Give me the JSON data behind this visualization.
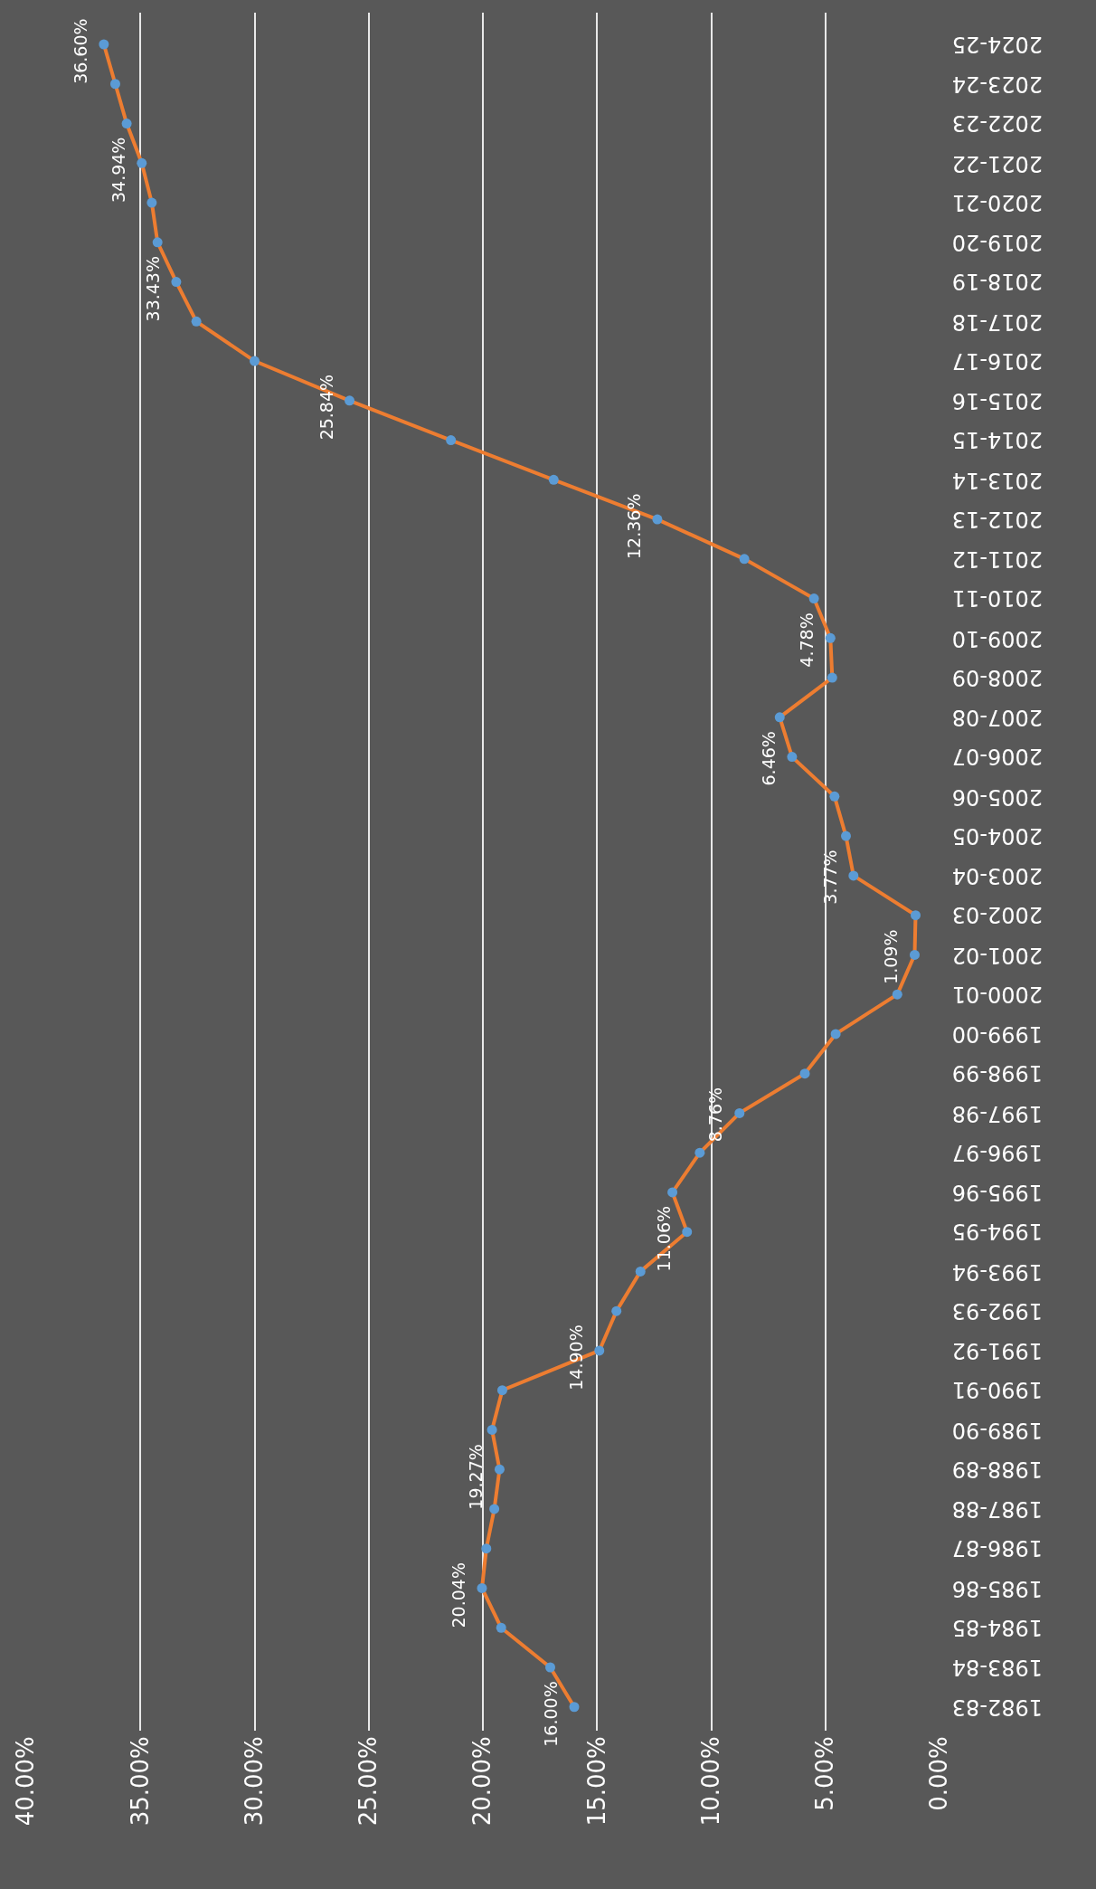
{
  "chart_data": {
    "type": "line",
    "orientation": "horizontal",
    "categories": [
      "2024-25",
      "2023-24",
      "2022-23",
      "2021-22",
      "2020-21",
      "2019-20",
      "2018-19",
      "2017-18",
      "2016-17",
      "2015-16",
      "2014-15",
      "2013-14",
      "2012-13",
      "2011-12",
      "2010-11",
      "2009-10",
      "2008-09",
      "2007-08",
      "2006-07",
      "2005-06",
      "2004-05",
      "2003-04",
      "2002-03",
      "2001-02",
      "2000-01",
      "1999-00",
      "1998-99",
      "1997-98",
      "1996-97",
      "1995-96",
      "1994-95",
      "1993-94",
      "1992-93",
      "1991-92",
      "1990-91",
      "1989-90",
      "1988-89",
      "1987-88",
      "1986-87",
      "1985-86",
      "1984-85",
      "1983-84",
      "1982-83"
    ],
    "series": [
      {
        "color": "#ed7d31",
        "colors": [
          "#5b9bd5",
          "#5b9bd5",
          "#5b9bd5",
          "#5b9bd5",
          "#5b9bd5",
          "#5b9bd5",
          "#5b9bd5",
          "#5b9bd5",
          "#5b9bd5",
          "#5b9bd5",
          "#5b9bd5",
          "#5b9bd5",
          "#5b9bd5",
          "#5b9bd5",
          "#5b9bd5",
          "#5b9bd5",
          "#5b9bd5",
          "#5b9bd5",
          "#5b9bd5",
          "#5b9bd5",
          "#5b9bd5",
          "#5b9bd5",
          "#5b9bd5",
          "#5b9bd5",
          "#5b9bd5",
          "#5b9bd5",
          "#5b9bd5",
          "#5b9bd5",
          "#5b9bd5",
          "#5b9bd5",
          "#5b9bd5",
          "#5b9bd5",
          "#5b9bd5",
          "#5b9bd5",
          "#5b9bd5",
          "#5b9bd5",
          "#5b9bd5",
          "#5b9bd5",
          "#5b9bd5",
          "#5b9bd5",
          "#5b9bd5",
          "#5b9bd5",
          "#5b9bd5"
        ],
        "values": [
          36.6,
          36.1,
          35.6,
          34.94,
          34.5,
          34.25,
          33.43,
          32.55,
          30.0,
          25.84,
          21.4,
          16.9,
          12.36,
          8.55,
          5.5,
          4.78,
          4.7,
          7.0,
          6.46,
          4.6,
          4.1,
          3.77,
          1.05,
          1.09,
          1.85,
          4.55,
          5.9,
          8.76,
          10.5,
          11.7,
          11.06,
          13.1,
          14.15,
          14.9,
          19.15,
          19.6,
          19.27,
          19.5,
          19.85,
          20.04,
          19.2,
          17.05,
          16.0
        ],
        "value_labels": [
          "36.60%",
          null,
          null,
          "34.94%",
          null,
          null,
          "33.43%",
          null,
          null,
          "25.84%",
          null,
          null,
          "12.36%",
          null,
          null,
          "4.78%",
          null,
          null,
          "6.46%",
          null,
          null,
          "3.77%",
          null,
          "1.09%",
          null,
          null,
          null,
          "8.76%",
          null,
          null,
          "11.06%",
          null,
          null,
          "14.90%",
          null,
          null,
          "19.27%",
          null,
          null,
          "20.04%",
          null,
          null,
          "16.00%"
        ]
      }
    ],
    "xlim": [
      40,
      0
    ],
    "xticks": [
      {
        "value": 40,
        "label": "40.00%"
      },
      {
        "value": 35,
        "label": "35.00%"
      },
      {
        "value": 30,
        "label": "30.00%"
      },
      {
        "value": 25,
        "label": "25.00%"
      },
      {
        "value": 20,
        "label": "20.00%"
      },
      {
        "value": 15,
        "label": "15.00%"
      },
      {
        "value": 10,
        "label": "10.00%"
      },
      {
        "value": 5,
        "label": "5.00%"
      },
      {
        "value": 0,
        "label": "0.00%"
      }
    ],
    "grid": "x",
    "marker": "circle",
    "line_style": "solid",
    "legend": false
  }
}
